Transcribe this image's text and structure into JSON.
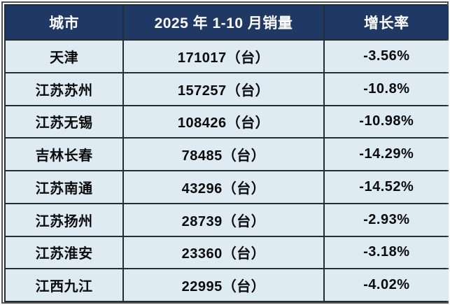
{
  "chart_data": {
    "type": "table",
    "columns": [
      "城市",
      "2025 年 1-10 月销量",
      "增长率"
    ],
    "rows": [
      [
        "天津",
        "171017（台）",
        "-3.56%"
      ],
      [
        "江苏苏州",
        "157257（台）",
        "-10.8%"
      ],
      [
        "江苏无锡",
        "108426（台）",
        "-10.98%"
      ],
      [
        "吉林长春",
        "78485（台）",
        "-14.29%"
      ],
      [
        "江苏南通",
        "43296（台）",
        "-14.52%"
      ],
      [
        "江苏扬州",
        "28739（台）",
        "-2.93%"
      ],
      [
        "江苏淮安",
        "23360（台）",
        "-3.18%"
      ],
      [
        "江西九江",
        "22995（台）",
        "-4.02%"
      ]
    ],
    "sales_values_units": "台",
    "sales_values": [
      171017,
      157257,
      108426,
      78485,
      43296,
      28739,
      23360,
      22995
    ],
    "growth_rate_pct": [
      -3.56,
      -10.8,
      -10.98,
      -14.29,
      -14.52,
      -2.93,
      -3.18,
      -4.02
    ],
    "title": "",
    "legend": "none",
    "grid": "on"
  },
  "colors": {
    "header_bg": "#1f3864",
    "header_text": "#ffffff",
    "cell_bg": "#deebf2",
    "body_text": "#0b0b0b",
    "gridline": "#232d38",
    "outer_frame": "#4f5355",
    "page_bg": "#ffffff"
  }
}
